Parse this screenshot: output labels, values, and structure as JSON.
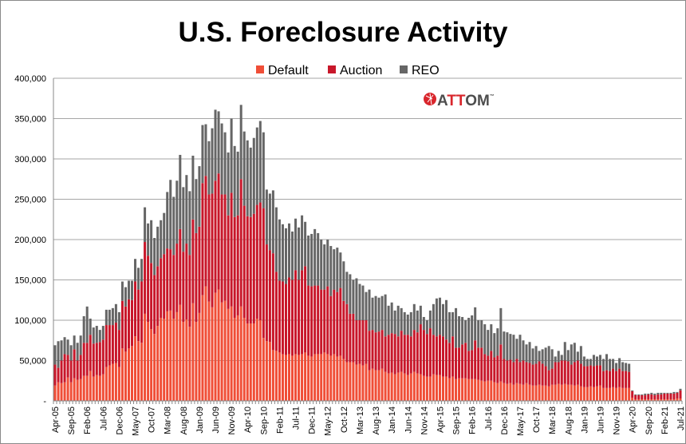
{
  "chart_data": {
    "type": "bar",
    "stacked": true,
    "title": "U.S. Foreclosure Activity",
    "xlabel": "",
    "ylabel": "",
    "ylim": [
      0,
      400000
    ],
    "value_scale": 1000,
    "grid": true,
    "legend_position": "top-center",
    "y_ticks": [
      0,
      50000,
      100000,
      150000,
      200000,
      250000,
      300000,
      350000,
      400000
    ],
    "y_tick_labels": [
      "-",
      "50,000",
      "100,000",
      "150,000",
      "200,000",
      "250,000",
      "300,000",
      "350,000",
      "400,000"
    ],
    "start_month": "Apr-05",
    "end_month": "Jul-21",
    "x_tick_every": 5,
    "x_tick_labels": [
      "Apr-05",
      "Sep-05",
      "Feb-06",
      "Jul-06",
      "Dec-06",
      "May-07",
      "Oct-07",
      "Mar-08",
      "Aug-08",
      "Jan-09",
      "Jun-09",
      "Nov-09",
      "Apr-10",
      "Sep-10",
      "Feb-11",
      "Jul-11",
      "Dec-11",
      "May-12",
      "Oct-12",
      "Mar-13",
      "Aug-13",
      "Jan-14",
      "Jun-14",
      "Nov-14",
      "Apr-15",
      "Sep-15",
      "Feb-16",
      "Jul-16",
      "Dec-16",
      "May-17",
      "Oct-17",
      "Mar-18",
      "Aug-18",
      "Jan-19",
      "Jun-19",
      "Nov-19",
      "Apr-20",
      "Sep-20",
      "Feb-21",
      "Jul-21"
    ],
    "series": [
      {
        "name": "Default",
        "color": "#f04e37",
        "values": [
          19,
          23,
          22,
          23,
          29,
          23,
          28,
          26,
          27,
          31,
          31,
          37,
          30,
          32,
          31,
          33,
          42,
          44,
          46,
          47,
          42,
          65,
          61,
          65,
          68,
          80,
          74,
          72,
          108,
          98,
          89,
          83,
          93,
          103,
          102,
          111,
          112,
          102,
          110,
          119,
          98,
          101,
          92,
          121,
          98,
          109,
          131,
          142,
          123,
          116,
          134,
          138,
          122,
          124,
          114,
          117,
          103,
          106,
          117,
          103,
          96,
          96,
          96,
          102,
          100,
          78,
          74,
          73,
          63,
          62,
          60,
          58,
          57,
          58,
          56,
          58,
          57,
          58,
          60,
          56,
          55,
          58,
          58,
          58,
          60,
          58,
          56,
          58,
          55,
          56,
          52,
          48,
          48,
          48,
          45,
          46,
          44,
          46,
          38,
          40,
          38,
          38,
          40,
          36,
          34,
          35,
          33,
          35,
          36,
          34,
          32,
          34,
          36,
          34,
          33,
          31,
          30,
          30,
          33,
          32,
          32,
          30,
          30,
          28,
          30,
          27,
          28,
          28,
          28,
          27,
          27,
          27,
          26,
          25,
          24,
          25,
          25,
          23,
          22,
          24,
          22,
          21,
          22,
          20,
          22,
          21,
          20,
          22,
          20,
          19,
          19,
          20,
          19,
          19,
          18,
          20,
          20,
          21,
          20,
          21,
          20,
          20,
          19,
          20,
          18,
          17,
          17,
          18,
          17,
          18,
          19,
          16,
          16,
          16,
          17,
          16,
          17,
          16,
          16,
          16,
          4,
          2,
          2,
          2,
          2,
          2,
          2,
          2,
          2,
          2,
          2,
          2,
          2,
          2,
          3,
          3
        ]
      },
      {
        "name": "Auction",
        "color": "#c8172a",
        "values": [
          26,
          18,
          28,
          35,
          28,
          27,
          36,
          24,
          30,
          41,
          41,
          45,
          41,
          40,
          42,
          43,
          52,
          50,
          48,
          50,
          46,
          59,
          56,
          61,
          57,
          68,
          64,
          76,
          89,
          82,
          82,
          73,
          74,
          74,
          80,
          78,
          76,
          79,
          85,
          94,
          87,
          94,
          89,
          104,
          110,
          107,
          139,
          137,
          133,
          141,
          139,
          144,
          134,
          132,
          116,
          141,
          125,
          124,
          158,
          139,
          133,
          132,
          136,
          141,
          146,
          161,
          120,
          114,
          120,
          98,
          89,
          90,
          88,
          95,
          94,
          104,
          93,
          104,
          107,
          87,
          87,
          85,
          85,
          80,
          78,
          84,
          74,
          80,
          80,
          84,
          72,
          72,
          60,
          60,
          55,
          54,
          56,
          54,
          49,
          48,
          47,
          48,
          48,
          44,
          48,
          49,
          50,
          45,
          51,
          48,
          50,
          46,
          52,
          51,
          62,
          57,
          53,
          60,
          49,
          48,
          50,
          50,
          46,
          44,
          50,
          39,
          38,
          42,
          44,
          35,
          36,
          48,
          40,
          41,
          34,
          31,
          37,
          31,
          34,
          46,
          30,
          29,
          29,
          28,
          30,
          27,
          30,
          26,
          27,
          26,
          27,
          29,
          27,
          24,
          20,
          20,
          28,
          27,
          30,
          29,
          29,
          25,
          29,
          30,
          28,
          26,
          26,
          26,
          26,
          26,
          25,
          21,
          22,
          21,
          23,
          21,
          23,
          21,
          21,
          20,
          8,
          5,
          5,
          5,
          5,
          6,
          6,
          5,
          6,
          6,
          7,
          7,
          7,
          7,
          7,
          10
        ]
      },
      {
        "name": "REO",
        "color": "#666666",
        "values": [
          24,
          33,
          25,
          21,
          19,
          19,
          17,
          22,
          24,
          33,
          45,
          20,
          20,
          21,
          15,
          17,
          19,
          19,
          21,
          23,
          22,
          24,
          24,
          23,
          24,
          28,
          27,
          28,
          43,
          40,
          53,
          46,
          49,
          47,
          51,
          70,
          86,
          72,
          78,
          92,
          80,
          85,
          79,
          79,
          67,
          75,
          72,
          64,
          66,
          81,
          88,
          77,
          88,
          77,
          78,
          92,
          88,
          79,
          92,
          92,
          94,
          86,
          94,
          96,
          101,
          94,
          68,
          70,
          78,
          80,
          76,
          71,
          69,
          67,
          60,
          64,
          65,
          68,
          55,
          62,
          65,
          70,
          65,
          62,
          56,
          58,
          62,
          50,
          55,
          44,
          49,
          40,
          49,
          42,
          52,
          45,
          43,
          35,
          51,
          40,
          45,
          42,
          42,
          52,
          36,
          38,
          29,
          38,
          28,
          28,
          25,
          30,
          32,
          27,
          23,
          16,
          17,
          22,
          38,
          47,
          46,
          40,
          49,
          38,
          30,
          49,
          39,
          34,
          28,
          41,
          43,
          41,
          34,
          34,
          37,
          32,
          33,
          30,
          34,
          45,
          34,
          35,
          32,
          34,
          25,
          34,
          25,
          22,
          26,
          20,
          22,
          13,
          18,
          23,
          30,
          24,
          7,
          14,
          7,
          23,
          14,
          25,
          24,
          11,
          22,
          12,
          9,
          8,
          14,
          11,
          13,
          15,
          20,
          15,
          12,
          10,
          13,
          11,
          10,
          10,
          1,
          1,
          1,
          1,
          2,
          1,
          2,
          2,
          2,
          2,
          1,
          1,
          1,
          2,
          1,
          2
        ]
      }
    ]
  },
  "logo": {
    "text": "ATTOM",
    "trademark": "™",
    "colors": {
      "red": "#d9262c",
      "dark": "#4d4d4d"
    }
  },
  "grid_color": "#a6a6a6"
}
